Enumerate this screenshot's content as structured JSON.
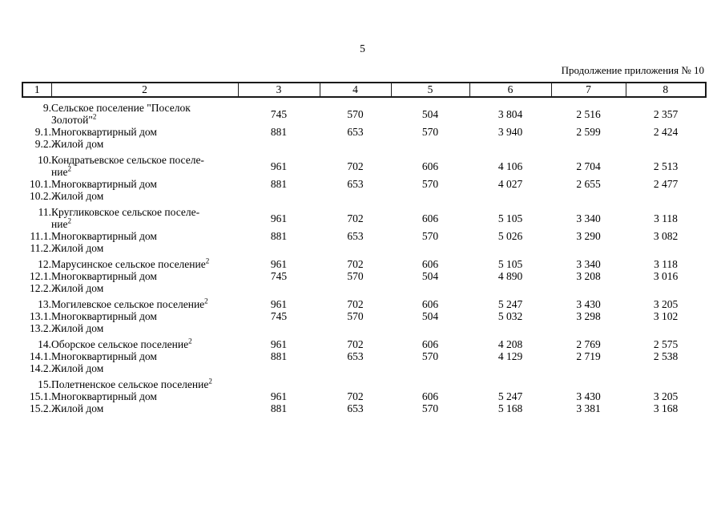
{
  "page": {
    "number": "5",
    "continuation": "Продолжение приложения № 10"
  },
  "table": {
    "header": [
      "1",
      "2",
      "3",
      "4",
      "5",
      "6",
      "7",
      "8"
    ],
    "rows": [
      {
        "num": "9.",
        "name_lines": [
          "Сельское поселение \"Поселок",
          "Золотой\""
        ],
        "sup": "2",
        "section": true,
        "values": [
          "745",
          "570",
          "504",
          "3 804",
          "2 516",
          "2 357"
        ]
      },
      {
        "num": "9.1.",
        "name_lines": [
          "Многоквартирный дом"
        ],
        "section": false,
        "values": [
          "881",
          "653",
          "570",
          "3 940",
          "2 599",
          "2 424"
        ]
      },
      {
        "num": "9.2.",
        "name_lines": [
          "Жилой дом"
        ],
        "section": false,
        "values": [
          "",
          "",
          "",
          "",
          "",
          ""
        ]
      },
      {
        "num": "10.",
        "name_lines": [
          "Кондратьевское сельское поселе-",
          "ние"
        ],
        "sup": "2",
        "section": true,
        "values": [
          "961",
          "702",
          "606",
          "4 106",
          "2 704",
          "2 513"
        ]
      },
      {
        "num": "10.1.",
        "name_lines": [
          "Многоквартирный дом"
        ],
        "section": false,
        "values": [
          "881",
          "653",
          "570",
          "4 027",
          "2 655",
          "2 477"
        ]
      },
      {
        "num": "10.2.",
        "name_lines": [
          "Жилой дом"
        ],
        "section": false,
        "values": [
          "",
          "",
          "",
          "",
          "",
          ""
        ]
      },
      {
        "num": "11.",
        "name_lines": [
          "Кругликовское сельское поселе-",
          "ние"
        ],
        "sup": "2",
        "section": true,
        "values": [
          "961",
          "702",
          "606",
          "5 105",
          "3 340",
          "3 118"
        ]
      },
      {
        "num": "11.1.",
        "name_lines": [
          "Многоквартирный дом"
        ],
        "section": false,
        "values": [
          "881",
          "653",
          "570",
          "5 026",
          "3 290",
          "3 082"
        ]
      },
      {
        "num": "11.2.",
        "name_lines": [
          "Жилой дом"
        ],
        "section": false,
        "values": [
          "",
          "",
          "",
          "",
          "",
          ""
        ]
      },
      {
        "num": "12.",
        "name_lines": [
          "Марусинское сельское поселение"
        ],
        "sup": "2",
        "section": true,
        "values": [
          "961",
          "702",
          "606",
          "5 105",
          "3 340",
          "3 118"
        ]
      },
      {
        "num": "12.1.",
        "name_lines": [
          "Многоквартирный дом"
        ],
        "section": false,
        "values": [
          "745",
          "570",
          "504",
          "4 890",
          "3 208",
          "3 016"
        ]
      },
      {
        "num": "12.2.",
        "name_lines": [
          "Жилой дом"
        ],
        "section": false,
        "values": [
          "",
          "",
          "",
          "",
          "",
          ""
        ]
      },
      {
        "num": "13.",
        "name_lines": [
          "Могилевское сельское поселение"
        ],
        "sup": "2",
        "section": true,
        "values": [
          "961",
          "702",
          "606",
          "5 247",
          "3 430",
          "3 205"
        ]
      },
      {
        "num": "13.1.",
        "name_lines": [
          "Многоквартирный дом"
        ],
        "section": false,
        "values": [
          "745",
          "570",
          "504",
          "5 032",
          "3 298",
          "3 102"
        ]
      },
      {
        "num": "13.2.",
        "name_lines": [
          "Жилой дом"
        ],
        "section": false,
        "values": [
          "",
          "",
          "",
          "",
          "",
          ""
        ]
      },
      {
        "num": "14.",
        "name_lines": [
          "Оборское сельское поселение"
        ],
        "sup": "2",
        "section": true,
        "values": [
          "961",
          "702",
          "606",
          "4 208",
          "2 769",
          "2 575"
        ]
      },
      {
        "num": "14.1.",
        "name_lines": [
          "Многоквартирный дом"
        ],
        "section": false,
        "values": [
          "881",
          "653",
          "570",
          "4 129",
          "2 719",
          "2 538"
        ]
      },
      {
        "num": "14.2.",
        "name_lines": [
          "Жилой дом"
        ],
        "section": false,
        "values": [
          "",
          "",
          "",
          "",
          "",
          ""
        ]
      },
      {
        "num": "15.",
        "name_lines": [
          "Полетненское сельское поселение"
        ],
        "sup": "2",
        "section": true,
        "values": [
          "",
          "",
          "",
          "",
          "",
          ""
        ]
      },
      {
        "num": "15.1.",
        "name_lines": [
          "Многоквартирный дом"
        ],
        "section": false,
        "values": [
          "961",
          "702",
          "606",
          "5 247",
          "3 430",
          "3 205"
        ]
      },
      {
        "num": "15.2.",
        "name_lines": [
          "Жилой дом"
        ],
        "section": false,
        "values": [
          "881",
          "653",
          "570",
          "5 168",
          "3 381",
          "3 168"
        ]
      }
    ]
  }
}
